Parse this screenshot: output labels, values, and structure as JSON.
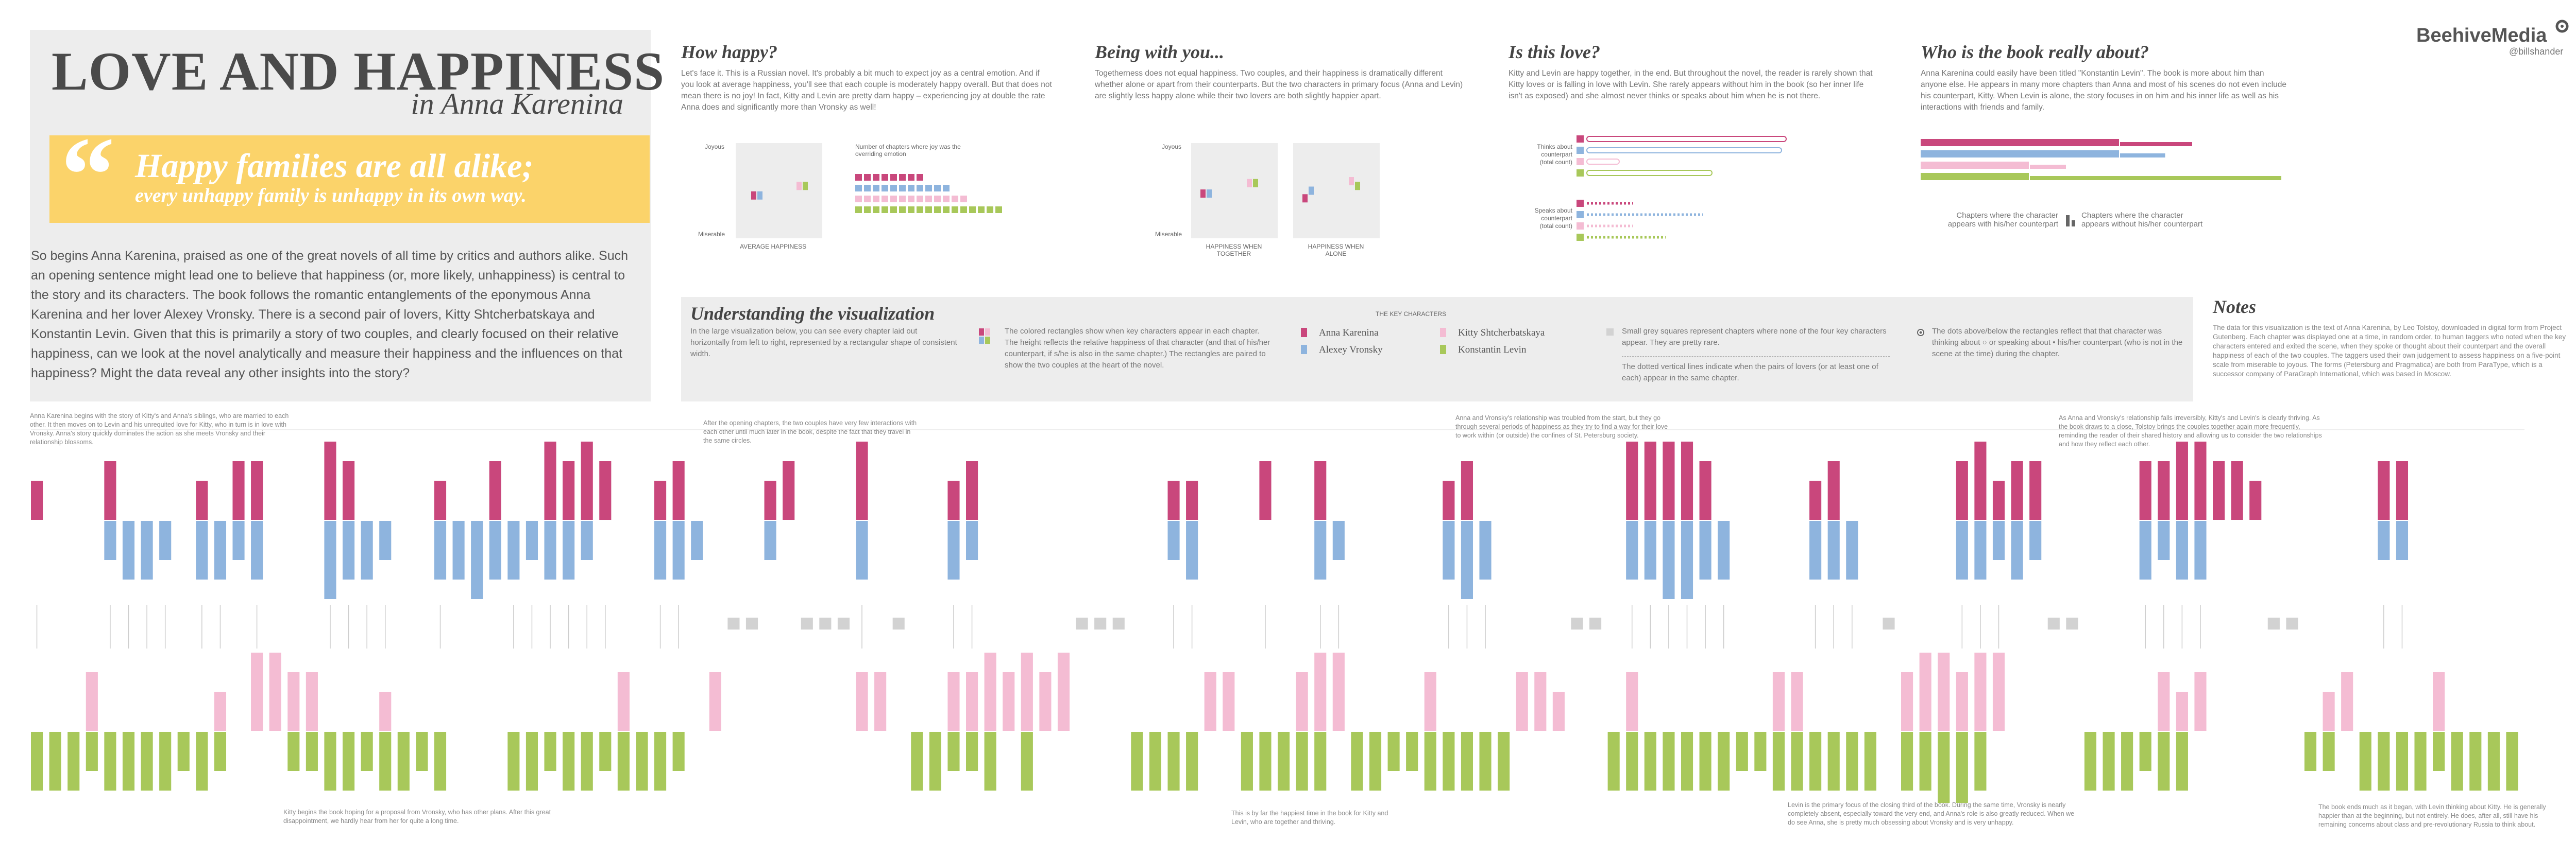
{
  "header": {
    "title": "LOVE AND HAPPINESS",
    "subtitle": "in Anna Karenina",
    "quote_mark": "“",
    "quote_line1": "Happy families are all alike;",
    "quote_line2": "every unhappy family is unhappy in its own way.",
    "intro": "So begins Anna Karenina, praised as one of the great novels of all time by critics and authors alike. Such an opening sentence might lead one to believe that happiness (or, more likely, unhappiness) is central to the story and its characters. The book follows the romantic entanglements of the eponymous Anna Karenina and her lover Alexey Vronsky. There is a second pair of lovers, Kitty Shtcherbatskaya and Konstantin Levin. Given that this is primarily a story of two couples, and clearly focused on their relative happiness, can we look at the novel analytically and measure their happiness and the influences on that happiness? Might the data reveal any other insights into the story?"
  },
  "brand": {
    "name": "BeehiveMedia",
    "handle": "@billshander"
  },
  "colors": {
    "anna": "#c9477c",
    "vronsky": "#8eb4de",
    "kitty": "#f4bcd3",
    "levin": "#a8c85a",
    "grey": "#d2d2d2",
    "quote_bg": "#fbd36a",
    "panel": "#ededed"
  },
  "sections": {
    "how_happy": {
      "title": "How happy?",
      "body": "Let's face it. This is a Russian novel. It's probably a bit much to expect joy as a central emotion. And if you look at average happiness, you'll see that each couple is moderately happy overall. But that does not mean there is no joy! In fact, Kitty and Levin are pretty darn happy – experiencing joy at double the rate Anna does and significantly more than Vronsky as well!",
      "joyous": "Joyous",
      "miserable": "Miserable",
      "avg_label": "AVERAGE HAPPINESS",
      "joy_label": "Number of chapters where joy was the overriding emotion"
    },
    "being_with": {
      "title": "Being with you...",
      "body": "Togetherness does not equal happiness. Two couples, and their happiness is dramatically different whether alone or apart from their counterparts. But the two characters in primary focus (Anna and Levin) are slightly less happy alone while their two lovers are both slightly happier apart.",
      "joyous": "Joyous",
      "miserable": "Miserable",
      "together_label_1": "HAPPINESS WHEN",
      "together_label_2": "TOGETHER",
      "alone_label_1": "HAPPINESS WHEN",
      "alone_label_2": "ALONE"
    },
    "is_love": {
      "title": "Is this love?",
      "body": "Kitty and Levin are happy together, in the end. But throughout the novel, the reader is rarely shown that Kitty loves or is falling in love with Levin. She rarely appears without him in the book (so her inner life isn't as exposed) and she almost never thinks or speaks about him when he is not there.",
      "thinks_1": "Thinks about",
      "thinks_2": "counterpart",
      "thinks_3": "(total count)",
      "speaks_1": "Speaks about",
      "speaks_2": "counterpart",
      "speaks_3": "(total count)"
    },
    "who_about": {
      "title": "Who is the book really about?",
      "body": "Anna Karenina could easily have been titled \"Konstantin Levin\". The book is more about him than anyone else. He appears in many more chapters than Anna and most of his scenes do not even include his counterpart, Kitty. When Levin is alone, the story focuses in on him and his inner life as well as his interactions with friends and family.",
      "with_1": "Chapters where the character",
      "with_2": "appears with his/her counterpart",
      "without_1": "Chapters where the character",
      "without_2": "appears without his/her counterpart"
    },
    "understand": {
      "title": "Understanding the visualization",
      "body": "In the large visualization below, you can see every chapter laid out horizontally from left to right, represented by a rectangular shape of consistent width.",
      "colored": "The colored rectangles show when key characters appear in each chapter. The height reflects the relative happiness of that character (and that of his/her counterpart, if s/he is also in the same chapter.) The rectangles are paired to show the two couples at the heart of the novel.",
      "key_title": "THE KEY CHARACTERS",
      "anna": "Anna Karenina",
      "vronsky": "Alexey Vronsky",
      "kitty": "Kitty Shtcherbatskaya",
      "levin": "Konstantin Levin",
      "grey": "Small grey squares  represent chapters where none of the four key characters appear. They are pretty rare.",
      "lines": "The dotted vertical lines indicate when the pairs of lovers (or at least one of each) appear in the same chapter.",
      "dots": "The dots above/below the rectangles reflect that that character was thinking about ○ or speaking about • his/her counterpart (who is not in the scene at the time) during the chapter."
    },
    "notes": {
      "title": "Notes",
      "body": "The data for this visualization is the text of Anna Karenina, by Leo Tolstoy, downloaded in digital form from Project Gutenberg. Each chapter was displayed one at a time, in random order, to human taggers who noted when the key characters entered and exited the scene, when they spoke or thought about their counterpart and the overall happiness of each of the two couples. The taggers used their own judgement to assess happiness on a five-point scale from miserable to joyous. The forms (Petersburg and Pragmatica) are both from ParaType, which is a successor company of ParaGraph International, which was based in Moscow."
    }
  },
  "annotations": {
    "top1": "Anna Karenina begins with the story of Kitty's and Anna's siblings, who are married to each other. It then moves on to Levin and his unrequited love for Kitty, who in turn is in love with Vronsky. Anna's story quickly dominates the action as she meets Vronsky and their relationship blossoms.",
    "top2": "After the opening chapters, the two couples have very few interactions with each other until much later in the book, despite the fact that they travel in the same circles.",
    "top3": "Anna and Vronsky's relationship was troubled from the start, but they go through several periods of happiness as they try to find a way for their love to work within (or outside) the confines of St. Petersburg society.",
    "top4": "As Anna and Vronsky's relationship falls irreversibly, Kitty's and Levin's is clearly thriving. As the book draws to a close, Tolstoy brings the couples together again more frequently, reminding the reader of their shared history and allowing us to consider the two relationships and how they reflect each other.",
    "bot1": "Kitty begins the book hoping for a proposal from Vronsky, who has other plans. After this great disappointment, we hardly hear from her for quite a long time.",
    "bot2": "This is by far the happiest time in the book for Kitty and Levin, who are together and thriving.",
    "bot3": "Levin is the primary focus of the closing third of the book. During the same time, Vronsky is nearly completely absent, especially toward the very end, and Anna's role is also greatly reduced. When we do see Anna, she is pretty much obsessing about Vronsky and is very unhappy.",
    "bot4": "The book ends much as it began, with Levin thinking about Kitty. He is generally happier than at the beginning, but not entirely. He does, after all, still have his remaining concerns about class and pre-revolutionary Russia to think about."
  },
  "chart_data": [
    {
      "type": "bar",
      "title": "AVERAGE HAPPINESS",
      "ylabel_top": "Joyous",
      "ylabel_bottom": "Miserable",
      "series": [
        {
          "name": "Anna Karenina",
          "values": [
            0.45
          ]
        },
        {
          "name": "Alexey Vronsky",
          "values": [
            0.45
          ]
        },
        {
          "name": "Kitty Shtcherbatskaya",
          "values": [
            0.55
          ]
        },
        {
          "name": "Konstantin Levin",
          "values": [
            0.55
          ]
        }
      ],
      "ylim": [
        0,
        1
      ]
    },
    {
      "type": "bar",
      "title": "Number of chapters where joy was the overriding emotion",
      "series": [
        {
          "name": "Anna Karenina",
          "values": [
            8
          ]
        },
        {
          "name": "Alexey Vronsky",
          "values": [
            11
          ]
        },
        {
          "name": "Kitty Shtcherbatskaya",
          "values": [
            13
          ]
        },
        {
          "name": "Konstantin Levin",
          "values": [
            17
          ]
        }
      ]
    },
    {
      "type": "bar",
      "title": "HAPPINESS WHEN TOGETHER / ALONE",
      "categories": [
        "HAPPINESS WHEN TOGETHER",
        "HAPPINESS WHEN ALONE"
      ],
      "series": [
        {
          "name": "Anna Karenina",
          "values": [
            0.47,
            0.42
          ]
        },
        {
          "name": "Alexey Vronsky",
          "values": [
            0.47,
            0.5
          ]
        },
        {
          "name": "Kitty Shtcherbatskaya",
          "values": [
            0.58,
            0.6
          ]
        },
        {
          "name": "Konstantin Levin",
          "values": [
            0.58,
            0.55
          ]
        }
      ],
      "ylim": [
        0,
        1
      ]
    },
    {
      "type": "bar",
      "title": "Thinks about counterpart (total count)",
      "series": [
        {
          "name": "Anna Karenina",
          "values": [
            43
          ]
        },
        {
          "name": "Alexey Vronsky",
          "values": [
            42
          ]
        },
        {
          "name": "Kitty Shtcherbatskaya",
          "values": [
            7
          ]
        },
        {
          "name": "Konstantin Levin",
          "values": [
            27
          ]
        }
      ]
    },
    {
      "type": "bar",
      "title": "Speaks about counterpart (total count)",
      "series": [
        {
          "name": "Anna Karenina",
          "values": [
            10
          ]
        },
        {
          "name": "Alexey Vronsky",
          "values": [
            25
          ]
        },
        {
          "name": "Kitty Shtcherbatskaya",
          "values": [
            10
          ]
        },
        {
          "name": "Konstantin Levin",
          "values": [
            17
          ]
        }
      ]
    },
    {
      "type": "bar",
      "title": "Who is the book really about?",
      "categories": [
        "with counterpart",
        "without counterpart"
      ],
      "series": [
        {
          "name": "Anna Karenina",
          "values": [
            110,
            40
          ]
        },
        {
          "name": "Alexey Vronsky",
          "values": [
            110,
            25
          ]
        },
        {
          "name": "Kitty Shtcherbatskaya",
          "values": [
            60,
            20
          ]
        },
        {
          "name": "Konstantin Levin",
          "values": [
            60,
            150
          ]
        }
      ]
    },
    {
      "type": "bar",
      "title": "Chapter timeline: Anna & Vronsky",
      "series": [
        {
          "name": "Anna Karenina",
          "values": [
            2,
            0,
            0,
            0,
            3,
            0,
            0,
            0,
            0,
            2,
            0,
            3,
            3,
            0,
            0,
            0,
            4,
            3,
            0,
            0,
            0,
            0,
            2,
            0,
            0,
            3,
            0,
            0,
            4,
            3,
            4,
            3,
            0,
            0,
            2,
            3,
            0,
            0,
            0,
            0,
            2,
            3,
            0,
            0,
            0,
            4,
            0,
            0,
            0,
            0,
            2,
            3,
            0,
            0,
            0,
            0,
            0,
            0,
            0,
            0,
            0,
            0,
            2,
            2,
            0,
            0,
            0,
            3,
            0,
            0,
            3,
            0,
            0,
            0,
            0,
            0,
            0,
            2,
            3,
            0,
            0,
            0,
            0,
            0,
            0,
            0,
            0,
            4,
            4,
            4,
            4,
            3,
            0,
            0,
            0,
            0,
            0,
            2,
            3,
            0,
            0,
            0,
            0,
            0,
            0,
            3,
            4,
            2,
            3,
            3,
            0,
            0,
            0,
            0,
            0,
            3,
            3,
            4,
            4,
            3,
            3,
            2,
            0,
            0,
            0,
            0,
            0,
            0,
            3,
            3,
            0,
            0,
            0,
            0,
            0,
            0
          ]
        },
        {
          "name": "Alexey Vronsky",
          "values": [
            0,
            0,
            0,
            0,
            2,
            3,
            3,
            2,
            0,
            3,
            3,
            2,
            3,
            0,
            0,
            0,
            4,
            3,
            3,
            2,
            0,
            0,
            3,
            3,
            4,
            3,
            3,
            2,
            3,
            3,
            2,
            0,
            0,
            0,
            3,
            3,
            2,
            0,
            0,
            0,
            2,
            0,
            0,
            0,
            0,
            3,
            0,
            0,
            0,
            0,
            3,
            2,
            0,
            0,
            0,
            0,
            0,
            0,
            0,
            0,
            0,
            0,
            2,
            3,
            0,
            0,
            0,
            0,
            0,
            0,
            3,
            2,
            0,
            0,
            0,
            0,
            0,
            3,
            4,
            3,
            0,
            0,
            0,
            0,
            0,
            0,
            0,
            3,
            3,
            4,
            4,
            3,
            3,
            0,
            0,
            0,
            0,
            3,
            3,
            3,
            0,
            0,
            0,
            0,
            0,
            3,
            3,
            2,
            3,
            2,
            0,
            0,
            0,
            0,
            0,
            3,
            2,
            3,
            3,
            0,
            0,
            0,
            0,
            0,
            0,
            0,
            0,
            0,
            2,
            2,
            0,
            0,
            0,
            0,
            0,
            0
          ]
        }
      ]
    },
    {
      "type": "bar",
      "title": "Chapter timeline: Kitty & Levin",
      "series": [
        {
          "name": "Kitty Shtcherbatskaya",
          "values": [
            0,
            0,
            0,
            3,
            0,
            0,
            0,
            0,
            0,
            0,
            2,
            0,
            4,
            4,
            3,
            3,
            0,
            0,
            0,
            2,
            0,
            0,
            0,
            0,
            0,
            0,
            0,
            0,
            0,
            0,
            0,
            0,
            3,
            0,
            0,
            0,
            0,
            3,
            0,
            0,
            0,
            0,
            0,
            0,
            0,
            3,
            3,
            0,
            0,
            0,
            3,
            3,
            4,
            3,
            4,
            3,
            4,
            0,
            0,
            0,
            0,
            0,
            0,
            0,
            3,
            3,
            0,
            0,
            0,
            3,
            4,
            4,
            0,
            0,
            0,
            0,
            3,
            0,
            0,
            0,
            0,
            3,
            3,
            2,
            0,
            0,
            0,
            3,
            0,
            0,
            0,
            0,
            0,
            0,
            0,
            3,
            3,
            0,
            0,
            0,
            0,
            0,
            3,
            4,
            4,
            3,
            4,
            4,
            0,
            0,
            0,
            0,
            0,
            0,
            0,
            0,
            3,
            2,
            3,
            0,
            0,
            0,
            0,
            0,
            0,
            2,
            3,
            0,
            0,
            0,
            0,
            3,
            0,
            0,
            0,
            0
          ]
        },
        {
          "name": "Konstantin Levin",
          "values": [
            3,
            3,
            3,
            2,
            3,
            3,
            3,
            3,
            2,
            3,
            2,
            0,
            0,
            0,
            2,
            2,
            3,
            3,
            2,
            3,
            3,
            2,
            3,
            0,
            0,
            0,
            3,
            3,
            2,
            3,
            3,
            2,
            3,
            3,
            3,
            2,
            0,
            0,
            0,
            0,
            0,
            0,
            0,
            0,
            0,
            0,
            0,
            0,
            3,
            3,
            2,
            2,
            3,
            0,
            3,
            0,
            0,
            0,
            0,
            0,
            3,
            3,
            3,
            3,
            0,
            0,
            3,
            3,
            3,
            3,
            3,
            0,
            3,
            3,
            2,
            2,
            3,
            3,
            3,
            3,
            3,
            0,
            0,
            0,
            0,
            0,
            3,
            3,
            3,
            3,
            3,
            3,
            3,
            2,
            2,
            3,
            3,
            3,
            3,
            3,
            3,
            0,
            3,
            3,
            4,
            4,
            3,
            0,
            0,
            0,
            0,
            0,
            3,
            3,
            3,
            2,
            3,
            3,
            0,
            0,
            0,
            0,
            0,
            0,
            2,
            2,
            0,
            3,
            3,
            3,
            3,
            2,
            3,
            3,
            3,
            3
          ]
        }
      ]
    }
  ]
}
